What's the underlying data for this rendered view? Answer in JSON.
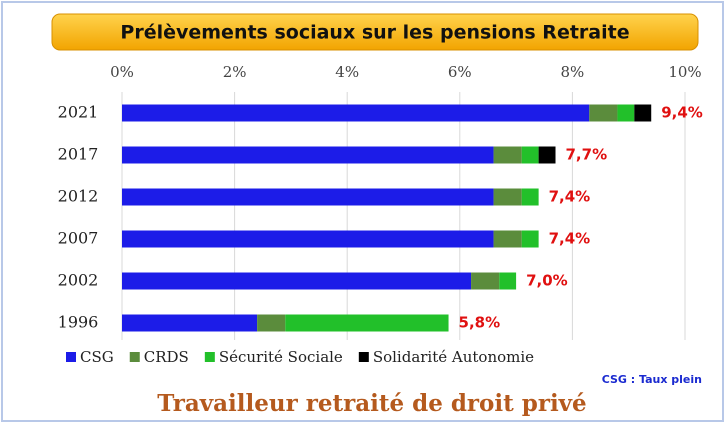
{
  "chart_data": {
    "type": "stacked-bar-horizontal",
    "title": "Prélèvements sociaux sur les pensions Retraite",
    "categories": [
      "2021",
      "2017",
      "2012",
      "2007",
      "2002",
      "1996"
    ],
    "series": [
      {
        "name": "CSG",
        "color": "#1c1ce8",
        "values": [
          8.3,
          6.6,
          6.6,
          6.6,
          6.2,
          2.4
        ]
      },
      {
        "name": "CRDS",
        "color": "#5b8c3c",
        "values": [
          0.5,
          0.5,
          0.5,
          0.5,
          0.5,
          0.5
        ]
      },
      {
        "name": "Sécurité Sociale",
        "color": "#22c02a",
        "values": [
          0.3,
          0.3,
          0.3,
          0.3,
          0.3,
          2.9
        ]
      },
      {
        "name": "Solidarité Autonomie",
        "color": "#000000",
        "values": [
          0.3,
          0.3,
          0,
          0,
          0,
          0
        ]
      }
    ],
    "total_labels": [
      "9,4%",
      "7,7%",
      "7,4%",
      "7,4%",
      "7,0%",
      "5,8%"
    ],
    "xlim": [
      0,
      10
    ],
    "xticks": [
      {
        "value": 0,
        "label": "0%"
      },
      {
        "value": 2,
        "label": "2%"
      },
      {
        "value": 4,
        "label": "4%"
      },
      {
        "value": 6,
        "label": "6%"
      },
      {
        "value": 8,
        "label": "8%"
      },
      {
        "value": 10,
        "label": "10%"
      }
    ],
    "grid": true,
    "note": "CSG : Taux plein",
    "caption": "Travailleur retraité de droit privé"
  }
}
